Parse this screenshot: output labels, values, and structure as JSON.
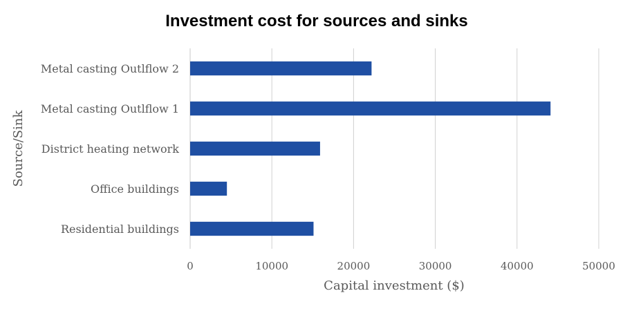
{
  "chart_data": {
    "type": "bar",
    "orientation": "horizontal",
    "title": "Investment cost for sources and sinks",
    "xlabel": "Capital investment ($)",
    "ylabel": "Source/Sink",
    "categories": [
      "Metal casting Outlflow 2",
      "Metal casting Outlflow 1",
      "District heating network",
      "Office buildings",
      "Residential buildings"
    ],
    "values": [
      22200,
      44100,
      15900,
      4500,
      15100
    ],
    "xlim": [
      0,
      50000
    ],
    "xticks": [
      "0",
      "10000",
      "20000",
      "30000",
      "40000",
      "50000"
    ],
    "grid": "vertical",
    "colors": {
      "bar": "#1f4fa3",
      "grid": "#d0d0d0",
      "axis": "#c8c8c8"
    }
  }
}
